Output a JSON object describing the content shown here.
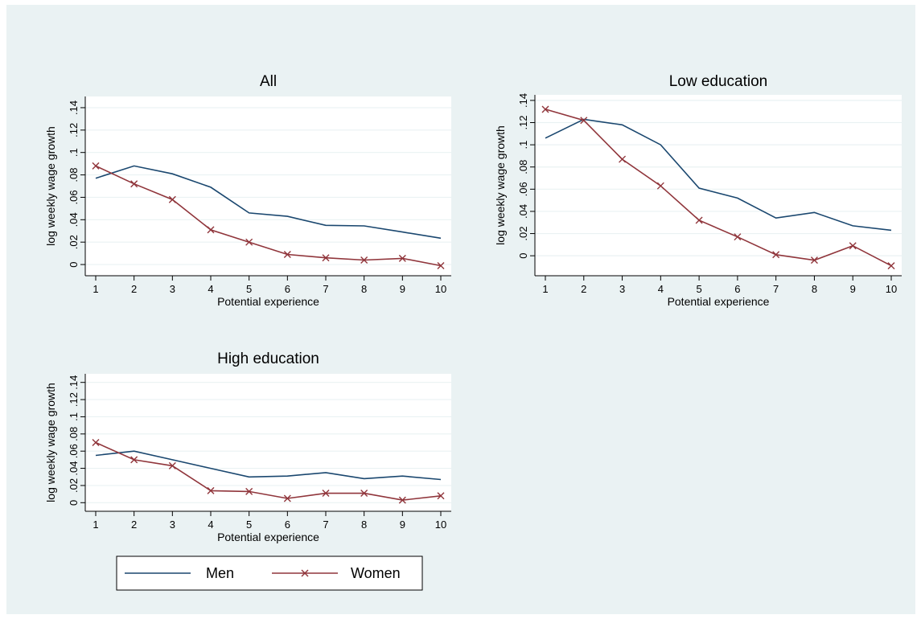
{
  "chart_data": [
    {
      "type": "line",
      "title": "All",
      "xlabel": "Potential experience",
      "ylabel": "log weekly wage growth",
      "x": [
        1,
        2,
        3,
        4,
        5,
        6,
        7,
        8,
        9,
        10
      ],
      "xticks": [
        "1",
        "2",
        "3",
        "4",
        "5",
        "6",
        "7",
        "8",
        "9",
        "10"
      ],
      "yticks": [
        "0",
        ".02",
        ".04",
        ".06",
        ".08",
        ".1",
        ".12",
        ".14"
      ],
      "ylim": [
        -0.01,
        0.15
      ],
      "grid": true,
      "series": [
        {
          "name": "Men",
          "values": [
            0.077,
            0.088,
            0.081,
            0.069,
            0.046,
            0.043,
            0.035,
            0.0345,
            0.029,
            0.0235
          ]
        },
        {
          "name": "Women",
          "values": [
            0.088,
            0.072,
            0.058,
            0.031,
            0.02,
            0.009,
            0.006,
            0.004,
            0.0055,
            -0.001
          ]
        }
      ]
    },
    {
      "type": "line",
      "title": "Low education",
      "xlabel": "Potential experience",
      "ylabel": "log weekly wage growth",
      "x": [
        1,
        2,
        3,
        4,
        5,
        6,
        7,
        8,
        9,
        10
      ],
      "xticks": [
        "1",
        "2",
        "3",
        "4",
        "5",
        "6",
        "7",
        "8",
        "9",
        "10"
      ],
      "yticks": [
        "0",
        ".02",
        ".04",
        ".06",
        ".08",
        ".1",
        ".12",
        ".14"
      ],
      "ylim": [
        -0.018,
        0.145
      ],
      "grid": true,
      "series": [
        {
          "name": "Men",
          "values": [
            0.106,
            0.123,
            0.118,
            0.1,
            0.061,
            0.052,
            0.034,
            0.039,
            0.027,
            0.023
          ]
        },
        {
          "name": "Women",
          "values": [
            0.132,
            0.122,
            0.087,
            0.063,
            0.032,
            0.017,
            0.001,
            -0.004,
            0.009,
            -0.009
          ]
        }
      ]
    },
    {
      "type": "line",
      "title": "High education",
      "xlabel": "Potential experience",
      "ylabel": "log weekly wage growth",
      "x": [
        1,
        2,
        3,
        4,
        5,
        6,
        7,
        8,
        9,
        10
      ],
      "xticks": [
        "1",
        "2",
        "3",
        "4",
        "5",
        "6",
        "7",
        "8",
        "9",
        "10"
      ],
      "yticks": [
        "0",
        ".02",
        ".04",
        ".06",
        ".08",
        ".1",
        ".12",
        ".14"
      ],
      "ylim": [
        -0.01,
        0.15
      ],
      "grid": true,
      "series": [
        {
          "name": "Men",
          "values": [
            0.055,
            0.06,
            0.05,
            0.04,
            0.03,
            0.031,
            0.035,
            0.028,
            0.031,
            0.027
          ]
        },
        {
          "name": "Women",
          "values": [
            0.07,
            0.05,
            0.043,
            0.014,
            0.013,
            0.005,
            0.011,
            0.011,
            0.003,
            0.008
          ]
        }
      ]
    }
  ],
  "legend": {
    "placement": "bottom-left",
    "items": [
      {
        "label": "Men",
        "color": "#1a476f",
        "marker": "none"
      },
      {
        "label": "Women",
        "color": "#90353b",
        "marker": "x"
      }
    ]
  },
  "colors": {
    "background": "#eaf2f3",
    "plot_area": "#ffffff",
    "men": "#1a476f",
    "women": "#90353b"
  }
}
